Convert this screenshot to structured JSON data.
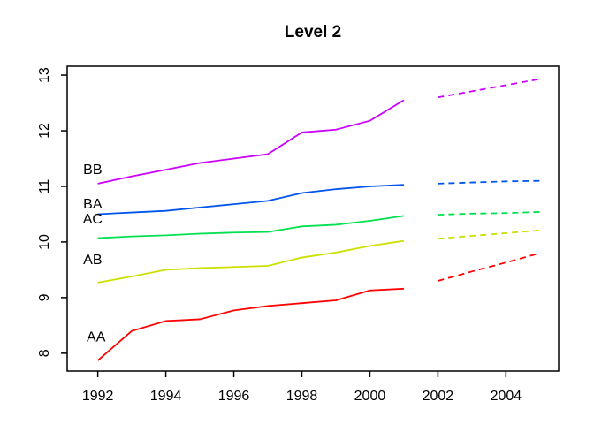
{
  "background": "#ffffff",
  "chart_data": {
    "type": "line",
    "title": "Level 2",
    "xlabel": "",
    "ylabel": "",
    "grid": false,
    "legend_position": "inline-left-of-series",
    "axis_color": "#000000",
    "xlim": [
      1991.1,
      2005.55
    ],
    "ylim": [
      7.68,
      13.16
    ],
    "x_ticks": [
      1992,
      1994,
      1996,
      1998,
      2000,
      2002,
      2004
    ],
    "y_ticks": [
      8,
      9,
      10,
      11,
      12,
      13
    ],
    "x_solid": [
      1992,
      1993,
      1994,
      1995,
      1996,
      1997,
      1998,
      1999,
      2000,
      2001
    ],
    "x_dashed": [
      2002,
      2003,
      2004,
      2005
    ],
    "series": [
      {
        "name": "BB",
        "color": "#CC00FF",
        "solid": [
          11.05,
          11.18,
          11.3,
          11.42,
          11.5,
          11.58,
          11.97,
          12.02,
          12.18,
          12.55
        ],
        "dashed": [
          12.6,
          12.71,
          12.82,
          12.93
        ],
        "label": {
          "text": "BB",
          "x": 1991.85,
          "y": 11.3
        }
      },
      {
        "name": "BA",
        "color": "#0055EE",
        "solid": [
          10.5,
          10.53,
          10.56,
          10.62,
          10.68,
          10.74,
          10.88,
          10.95,
          11.0,
          11.03
        ],
        "dashed": [
          11.05,
          11.07,
          11.09,
          11.1
        ],
        "label": {
          "text": "BA",
          "x": 1991.85,
          "y": 10.68
        }
      },
      {
        "name": "AC",
        "color": "#00E050",
        "solid": [
          10.07,
          10.1,
          10.12,
          10.15,
          10.17,
          10.18,
          10.28,
          10.31,
          10.38,
          10.47
        ],
        "dashed": [
          10.49,
          10.51,
          10.52,
          10.54
        ],
        "label": {
          "text": "AC",
          "x": 1991.85,
          "y": 10.41
        }
      },
      {
        "name": "AB",
        "color": "#CCE000",
        "solid": [
          9.27,
          9.38,
          9.5,
          9.53,
          9.55,
          9.57,
          9.72,
          9.81,
          9.93,
          10.02
        ],
        "dashed": [
          10.06,
          10.11,
          10.16,
          10.21
        ],
        "label": {
          "text": "AB",
          "x": 1991.85,
          "y": 9.68
        }
      },
      {
        "name": "AA",
        "color": "#FF0000",
        "solid": [
          7.87,
          8.4,
          8.58,
          8.61,
          8.77,
          8.85,
          8.9,
          8.95,
          9.13,
          9.16
        ],
        "dashed": [
          9.3,
          9.47,
          9.63,
          9.8
        ],
        "label": {
          "text": "AA",
          "x": 1991.95,
          "y": 8.29
        }
      }
    ]
  }
}
